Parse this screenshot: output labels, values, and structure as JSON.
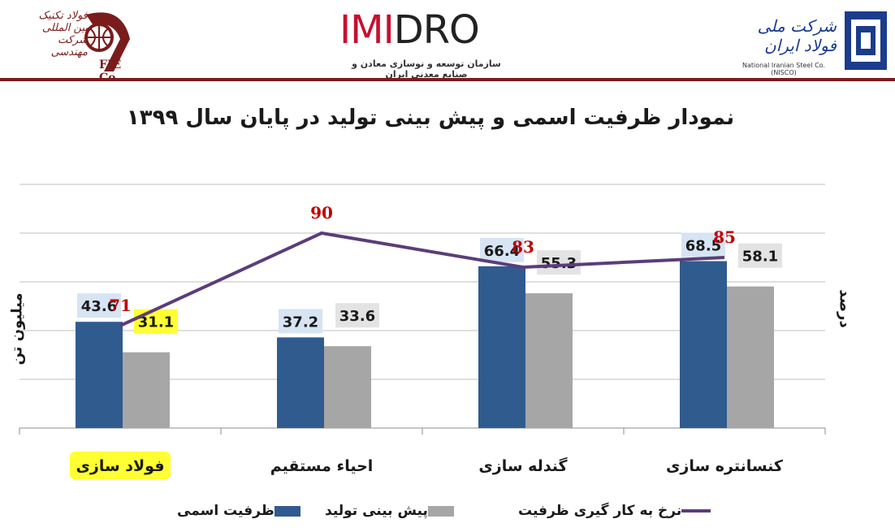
{
  "header": {
    "left_logo": {
      "brand_fa": "فولاد تکنیک بین المللی شرکت مهندسی",
      "brand_code": "FIE Co."
    },
    "center_logo": {
      "brand_name_left": "IMI",
      "brand_name_right": "DRO",
      "subtitle": "سازمان توسعه و نوسازی معادن و صنایع معدنی ایران"
    },
    "right_logo": {
      "brand_fa": "شرکت ملی فولاد ایران",
      "brand_en": "National Iranian Steel Co. (NISCO)"
    }
  },
  "chart_data": {
    "type": "bar",
    "title": "نمودار ظرفیت اسمی و پیش بینی تولید در پایان سال ۱۳۹۹",
    "ylabel_left": "میلیون تن",
    "ylabel_right": "درصد",
    "categories": [
      "فولاد سازی",
      "احیاء مستقیم",
      "گندله سازی",
      "کنسانتره سازی"
    ],
    "highlighted_category_index": 0,
    "series": [
      {
        "name": "ظرفیت اسمی",
        "kind": "bar",
        "color": "#2f5b8f",
        "values": [
          43.6,
          37.2,
          66.4,
          68.5
        ],
        "label_bg": "#d6e4f3"
      },
      {
        "name": "پیش بینی تولید",
        "kind": "bar",
        "color": "#a6a6a6",
        "values": [
          31.1,
          33.6,
          55.3,
          58.1
        ],
        "label_bg": "#e3e3e3"
      },
      {
        "name": "نرخ به کار گیری ظرفیت",
        "kind": "line",
        "color": "#5b3d7a",
        "values": [
          71,
          90,
          83,
          85
        ],
        "label_color": "#c00000"
      }
    ],
    "highlight_color": "#ffff33",
    "highlighted_value": 31.1,
    "ylim_left": [
      0,
      100
    ],
    "ylim_right": [
      50,
      100
    ],
    "grid": true,
    "legend_position": "bottom"
  }
}
